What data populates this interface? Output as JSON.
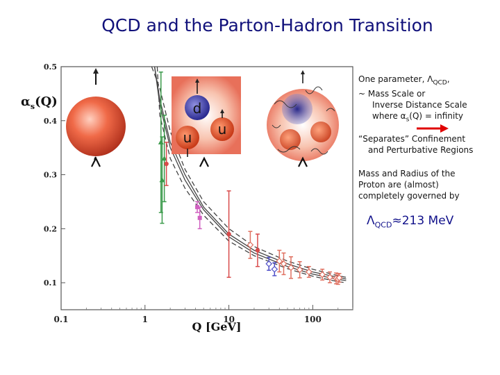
{
  "title": "QCD and the Parton-Hadron Transition",
  "chart_data": {
    "type": "scatter",
    "xscale": "log",
    "xlim": [
      0.1,
      300
    ],
    "ylim": [
      0.05,
      0.5
    ],
    "xlabel": "Q [GeV]",
    "ylabel": "αs(Q)",
    "xticks": [
      "0.1",
      "1",
      "10",
      "100"
    ],
    "yticks": [
      "0.1",
      "0.2",
      "0.3",
      "0.4",
      "0.5"
    ],
    "curves": [
      {
        "style": "solid",
        "points": [
          [
            1.3,
            0.5
          ],
          [
            1.5,
            0.44
          ],
          [
            2,
            0.36
          ],
          [
            3,
            0.3
          ],
          [
            5,
            0.24
          ],
          [
            10,
            0.19
          ],
          [
            20,
            0.16
          ],
          [
            50,
            0.135
          ],
          [
            100,
            0.12
          ],
          [
            200,
            0.11
          ],
          [
            250,
            0.107
          ]
        ]
      },
      {
        "style": "solid",
        "points": [
          [
            1.3,
            0.5
          ],
          [
            1.5,
            0.43
          ],
          [
            2,
            0.35
          ],
          [
            3,
            0.29
          ],
          [
            5,
            0.235
          ],
          [
            10,
            0.185
          ],
          [
            20,
            0.155
          ],
          [
            50,
            0.13
          ],
          [
            100,
            0.116
          ],
          [
            200,
            0.106
          ],
          [
            250,
            0.104
          ]
        ]
      },
      {
        "style": "dashed",
        "points": [
          [
            1.2,
            0.5
          ],
          [
            1.5,
            0.46
          ],
          [
            2,
            0.38
          ],
          [
            3,
            0.31
          ],
          [
            5,
            0.25
          ],
          [
            10,
            0.2
          ],
          [
            20,
            0.167
          ],
          [
            50,
            0.14
          ],
          [
            100,
            0.125
          ],
          [
            200,
            0.113
          ],
          [
            250,
            0.11
          ]
        ]
      },
      {
        "style": "dashed",
        "points": [
          [
            1.4,
            0.5
          ],
          [
            1.5,
            0.41
          ],
          [
            2,
            0.33
          ],
          [
            3,
            0.275
          ],
          [
            5,
            0.225
          ],
          [
            10,
            0.177
          ],
          [
            20,
            0.15
          ],
          [
            50,
            0.126
          ],
          [
            100,
            0.112
          ],
          [
            200,
            0.102
          ],
          [
            250,
            0.1
          ]
        ]
      }
    ],
    "series": [
      {
        "color": "#3a9a4a",
        "marker": "triangle",
        "points": [
          {
            "x": 1.55,
            "y": 0.36,
            "err": 0.13
          },
          {
            "x": 1.7,
            "y": 0.33,
            "err": 0.08
          },
          {
            "x": 1.6,
            "y": 0.29,
            "err": 0.08
          }
        ]
      },
      {
        "color": "#d84a4a",
        "marker": "circle",
        "points": [
          {
            "x": 1.8,
            "y": 0.32,
            "err": 0.04
          },
          {
            "x": 10,
            "y": 0.19,
            "err": 0.08
          },
          {
            "x": 22,
            "y": 0.16,
            "err": 0.03
          }
        ]
      },
      {
        "color": "#d060c0",
        "marker": "square",
        "points": [
          {
            "x": 4.2,
            "y": 0.24,
            "err": 0.01
          },
          {
            "x": 4.5,
            "y": 0.22,
            "err": 0.02
          }
        ]
      },
      {
        "color": "#5050c8",
        "marker": "diamond",
        "points": [
          {
            "x": 30,
            "y": 0.135,
            "err": 0.012
          },
          {
            "x": 35,
            "y": 0.125,
            "err": 0.012
          }
        ]
      },
      {
        "color": "#e07060",
        "marker": "diamond",
        "points": [
          {
            "x": 18,
            "y": 0.17,
            "err": 0.025
          },
          {
            "x": 40,
            "y": 0.14,
            "err": 0.02
          },
          {
            "x": 45,
            "y": 0.135,
            "err": 0.02
          },
          {
            "x": 55,
            "y": 0.128,
            "err": 0.02
          },
          {
            "x": 70,
            "y": 0.124,
            "err": 0.015
          },
          {
            "x": 90,
            "y": 0.12,
            "err": 0.01
          },
          {
            "x": 130,
            "y": 0.115,
            "err": 0.01
          },
          {
            "x": 160,
            "y": 0.11,
            "err": 0.01
          },
          {
            "x": 190,
            "y": 0.108,
            "err": 0.01
          },
          {
            "x": 200,
            "y": 0.107,
            "err": 0.01
          },
          {
            "x": 207,
            "y": 0.109,
            "err": 0.008
          }
        ]
      }
    ]
  },
  "insets": {
    "quark_d": "d",
    "quark_u1": "u",
    "quark_u2": "u"
  },
  "side": {
    "line1": "One parameter, ΛQCD,",
    "line2": "~ Mass Scale or",
    "line3": "Inverse Distance Scale",
    "line4": "where αs(Q) = infinity",
    "line5": "“Separates” Confinement",
    "line6": "and Perturbative Regions",
    "line7": "Mass and Radius of the",
    "line8": "Proton are (almost)",
    "line9": "completely governed by",
    "lambda_value": "ΛQCD≈213 MeV",
    "arrow_color": "#e00000"
  }
}
